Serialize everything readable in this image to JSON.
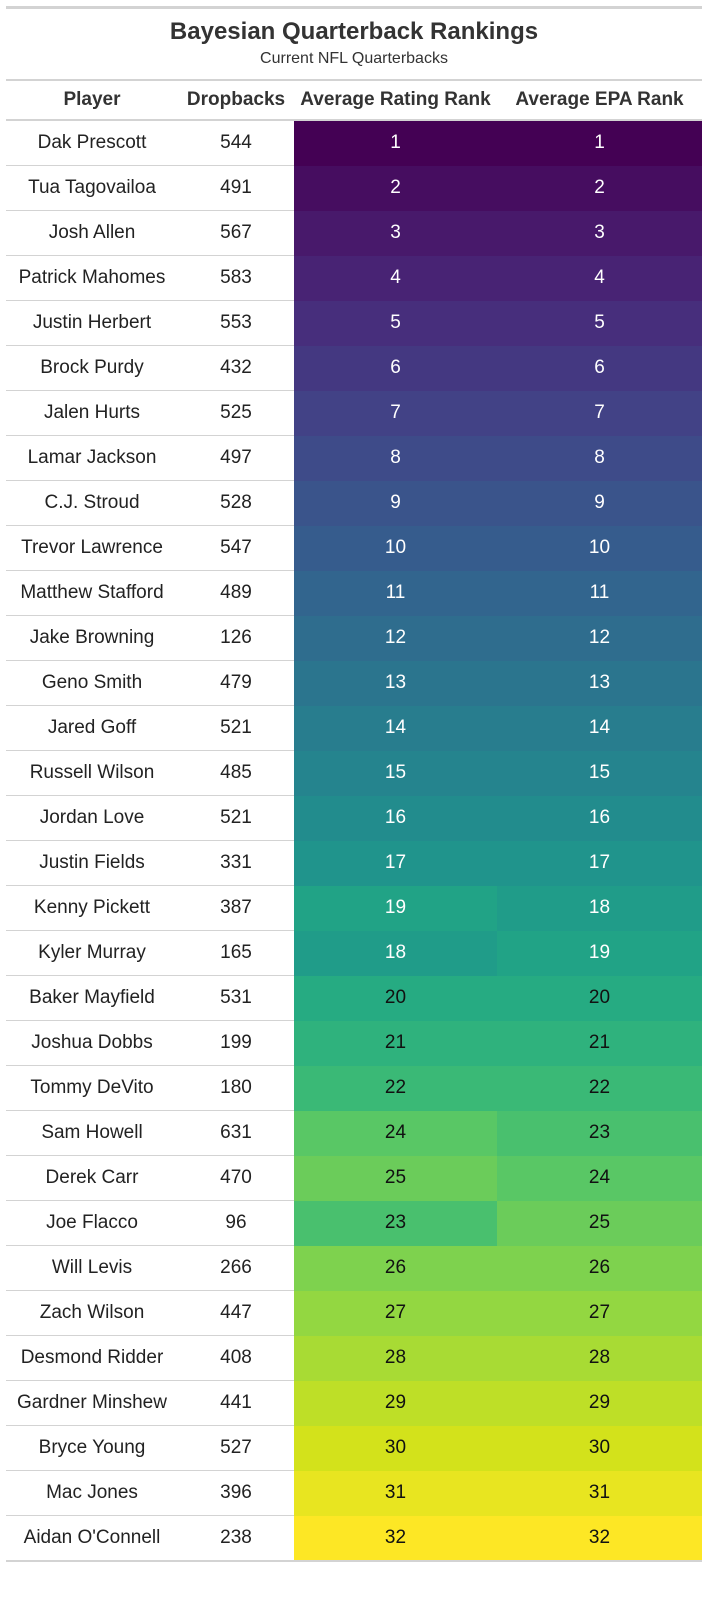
{
  "chart_data": {
    "type": "table",
    "title": "Bayesian Quarterback Rankings",
    "subtitle": "Current NFL Quarterbacks",
    "columns": [
      "Player",
      "Dropbacks",
      "Average Rating Rank",
      "Average EPA Rank"
    ],
    "color_scale": "viridis",
    "rank_min": 1,
    "rank_max": 32,
    "rows": [
      {
        "player": "Dak Prescott",
        "dropbacks": 544,
        "rating_rank": 1,
        "epa_rank": 1
      },
      {
        "player": "Tua Tagovailoa",
        "dropbacks": 491,
        "rating_rank": 2,
        "epa_rank": 2
      },
      {
        "player": "Josh Allen",
        "dropbacks": 567,
        "rating_rank": 3,
        "epa_rank": 3
      },
      {
        "player": "Patrick Mahomes",
        "dropbacks": 583,
        "rating_rank": 4,
        "epa_rank": 4
      },
      {
        "player": "Justin Herbert",
        "dropbacks": 553,
        "rating_rank": 5,
        "epa_rank": 5
      },
      {
        "player": "Brock Purdy",
        "dropbacks": 432,
        "rating_rank": 6,
        "epa_rank": 6
      },
      {
        "player": "Jalen Hurts",
        "dropbacks": 525,
        "rating_rank": 7,
        "epa_rank": 7
      },
      {
        "player": "Lamar Jackson",
        "dropbacks": 497,
        "rating_rank": 8,
        "epa_rank": 8
      },
      {
        "player": "C.J. Stroud",
        "dropbacks": 528,
        "rating_rank": 9,
        "epa_rank": 9
      },
      {
        "player": "Trevor Lawrence",
        "dropbacks": 547,
        "rating_rank": 10,
        "epa_rank": 10
      },
      {
        "player": "Matthew Stafford",
        "dropbacks": 489,
        "rating_rank": 11,
        "epa_rank": 11
      },
      {
        "player": "Jake Browning",
        "dropbacks": 126,
        "rating_rank": 12,
        "epa_rank": 12
      },
      {
        "player": "Geno Smith",
        "dropbacks": 479,
        "rating_rank": 13,
        "epa_rank": 13
      },
      {
        "player": "Jared Goff",
        "dropbacks": 521,
        "rating_rank": 14,
        "epa_rank": 14
      },
      {
        "player": "Russell Wilson",
        "dropbacks": 485,
        "rating_rank": 15,
        "epa_rank": 15
      },
      {
        "player": "Jordan Love",
        "dropbacks": 521,
        "rating_rank": 16,
        "epa_rank": 16
      },
      {
        "player": "Justin Fields",
        "dropbacks": 331,
        "rating_rank": 17,
        "epa_rank": 17
      },
      {
        "player": "Kenny Pickett",
        "dropbacks": 387,
        "rating_rank": 19,
        "epa_rank": 18
      },
      {
        "player": "Kyler Murray",
        "dropbacks": 165,
        "rating_rank": 18,
        "epa_rank": 19
      },
      {
        "player": "Baker Mayfield",
        "dropbacks": 531,
        "rating_rank": 20,
        "epa_rank": 20
      },
      {
        "player": "Joshua Dobbs",
        "dropbacks": 199,
        "rating_rank": 21,
        "epa_rank": 21
      },
      {
        "player": "Tommy DeVito",
        "dropbacks": 180,
        "rating_rank": 22,
        "epa_rank": 22
      },
      {
        "player": "Sam Howell",
        "dropbacks": 631,
        "rating_rank": 24,
        "epa_rank": 23
      },
      {
        "player": "Derek Carr",
        "dropbacks": 470,
        "rating_rank": 25,
        "epa_rank": 24
      },
      {
        "player": "Joe Flacco",
        "dropbacks": 96,
        "rating_rank": 23,
        "epa_rank": 25
      },
      {
        "player": "Will Levis",
        "dropbacks": 266,
        "rating_rank": 26,
        "epa_rank": 26
      },
      {
        "player": "Zach Wilson",
        "dropbacks": 447,
        "rating_rank": 27,
        "epa_rank": 27
      },
      {
        "player": "Desmond Ridder",
        "dropbacks": 408,
        "rating_rank": 28,
        "epa_rank": 28
      },
      {
        "player": "Gardner Minshew",
        "dropbacks": 441,
        "rating_rank": 29,
        "epa_rank": 29
      },
      {
        "player": "Bryce Young",
        "dropbacks": 527,
        "rating_rank": 30,
        "epa_rank": 30
      },
      {
        "player": "Mac Jones",
        "dropbacks": 396,
        "rating_rank": 31,
        "epa_rank": 31
      },
      {
        "player": "Aidan O'Connell",
        "dropbacks": 238,
        "rating_rank": 32,
        "epa_rank": 32
      }
    ]
  }
}
